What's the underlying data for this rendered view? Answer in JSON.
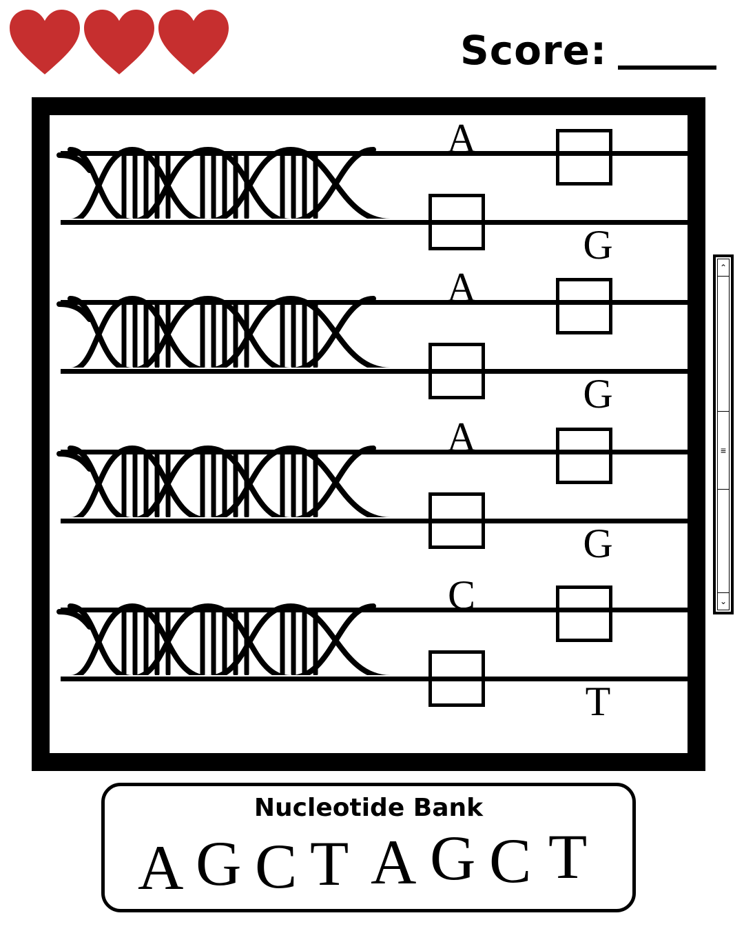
{
  "lives": {
    "count": 3,
    "color": "#c62f2f",
    "icon": "heart-icon"
  },
  "score": {
    "label": "Score:",
    "value": ""
  },
  "board": {
    "rows": [
      {
        "top_base": "A",
        "bottom_base": "G"
      },
      {
        "top_base": "A",
        "bottom_base": "G"
      },
      {
        "top_base": "A",
        "bottom_base": "G"
      },
      {
        "top_base": "C",
        "bottom_base": "T"
      }
    ]
  },
  "scrollbar": {
    "up_icon": "chevron-up-icon",
    "down_icon": "chevron-down-icon",
    "thumb_icon": "grip-lines-icon"
  },
  "bank": {
    "title": "Nucleotide Bank",
    "letters": [
      "A",
      "G",
      "C",
      "T",
      "A",
      "G",
      "C",
      "T"
    ]
  }
}
